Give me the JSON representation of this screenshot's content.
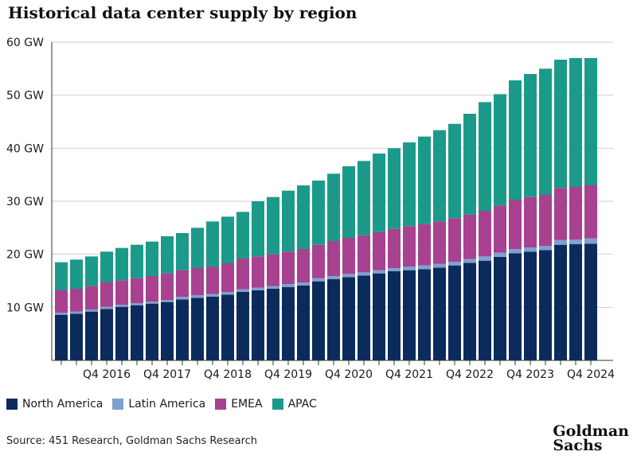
{
  "title": "Historical data center supply by region",
  "source": "Source: 451 Research, Goldman Sachs Research",
  "logo": {
    "line1": "Goldman",
    "line2": "Sachs"
  },
  "chart_data": {
    "type": "bar",
    "stacked": true,
    "title": "Historical data center supply by region",
    "xlabel": "",
    "ylabel": "",
    "ylim": [
      0,
      60
    ],
    "yticks": [
      {
        "value": 10,
        "label": "10 GW"
      },
      {
        "value": 20,
        "label": "20 GW"
      },
      {
        "value": 30,
        "label": "30 GW"
      },
      {
        "value": 40,
        "label": "40 GW"
      },
      {
        "value": 50,
        "label": "50 GW"
      },
      {
        "value": 60,
        "label": "60 GW"
      }
    ],
    "grid": true,
    "legend_position": "bottom-left",
    "categories": [
      "Q1 2016",
      "Q2 2016",
      "Q3 2016",
      "Q4 2016",
      "Q1 2017",
      "Q2 2017",
      "Q3 2017",
      "Q4 2017",
      "Q1 2018",
      "Q2 2018",
      "Q3 2018",
      "Q4 2018",
      "Q1 2019",
      "Q2 2019",
      "Q3 2019",
      "Q4 2019",
      "Q1 2020",
      "Q2 2020",
      "Q3 2020",
      "Q4 2020",
      "Q1 2021",
      "Q2 2021",
      "Q3 2021",
      "Q4 2021",
      "Q1 2022",
      "Q2 2022",
      "Q3 2022",
      "Q4 2022",
      "Q1 2023",
      "Q2 2023",
      "Q3 2023",
      "Q4 2023",
      "Q1 2024",
      "Q2 2024",
      "Q3 2024",
      "Q4 2024"
    ],
    "xtick_labels": [
      {
        "index": 3,
        "label": "Q4 2016"
      },
      {
        "index": 7,
        "label": "Q4 2017"
      },
      {
        "index": 11,
        "label": "Q4 2018"
      },
      {
        "index": 15,
        "label": "Q4 2019"
      },
      {
        "index": 19,
        "label": "Q4 2020"
      },
      {
        "index": 23,
        "label": "Q4 2021"
      },
      {
        "index": 27,
        "label": "Q4 2022"
      },
      {
        "index": 31,
        "label": "Q4 2023"
      },
      {
        "index": 35,
        "label": "Q4 2024"
      }
    ],
    "series": [
      {
        "name": "North America",
        "color": "#0b2b5c",
        "values": [
          8.6,
          8.8,
          9.2,
          9.7,
          10.1,
          10.4,
          10.7,
          11.0,
          11.5,
          11.8,
          12.0,
          12.4,
          12.9,
          13.2,
          13.5,
          13.8,
          14.1,
          14.9,
          15.3,
          15.7,
          16.0,
          16.4,
          16.8,
          17.0,
          17.2,
          17.5,
          17.9,
          18.4,
          18.8,
          19.5,
          20.2,
          20.5,
          20.8,
          21.8,
          21.9,
          22.0
        ]
      },
      {
        "name": "Latin America",
        "color": "#7ea1cf",
        "values": [
          0.4,
          0.4,
          0.4,
          0.4,
          0.4,
          0.4,
          0.4,
          0.4,
          0.5,
          0.5,
          0.5,
          0.5,
          0.5,
          0.5,
          0.5,
          0.6,
          0.6,
          0.6,
          0.6,
          0.6,
          0.6,
          0.6,
          0.6,
          0.7,
          0.7,
          0.7,
          0.7,
          0.7,
          0.8,
          0.8,
          0.8,
          0.8,
          0.8,
          0.9,
          0.9,
          1.0
        ]
      },
      {
        "name": "EMEA",
        "color": "#a8418f",
        "values": [
          4.2,
          4.3,
          4.4,
          4.6,
          4.6,
          4.7,
          4.8,
          5.0,
          5.0,
          5.1,
          5.2,
          5.4,
          5.8,
          5.9,
          6.0,
          6.1,
          6.3,
          6.3,
          6.6,
          6.8,
          7.0,
          7.2,
          7.4,
          7.6,
          7.8,
          8.0,
          8.2,
          8.4,
          8.6,
          8.9,
          9.3,
          9.5,
          9.6,
          9.8,
          9.9,
          10.0
        ]
      },
      {
        "name": "APAC",
        "color": "#1b9a8a",
        "values": [
          5.3,
          5.5,
          5.6,
          5.8,
          6.1,
          6.3,
          6.5,
          7.0,
          7.0,
          7.6,
          8.5,
          8.8,
          8.8,
          10.4,
          10.8,
          11.5,
          12.0,
          12.1,
          12.7,
          13.5,
          14.0,
          14.8,
          15.2,
          15.8,
          16.5,
          17.2,
          17.8,
          19.0,
          20.5,
          21.0,
          22.5,
          23.2,
          23.8,
          24.2,
          24.3,
          24.0
        ]
      }
    ]
  }
}
